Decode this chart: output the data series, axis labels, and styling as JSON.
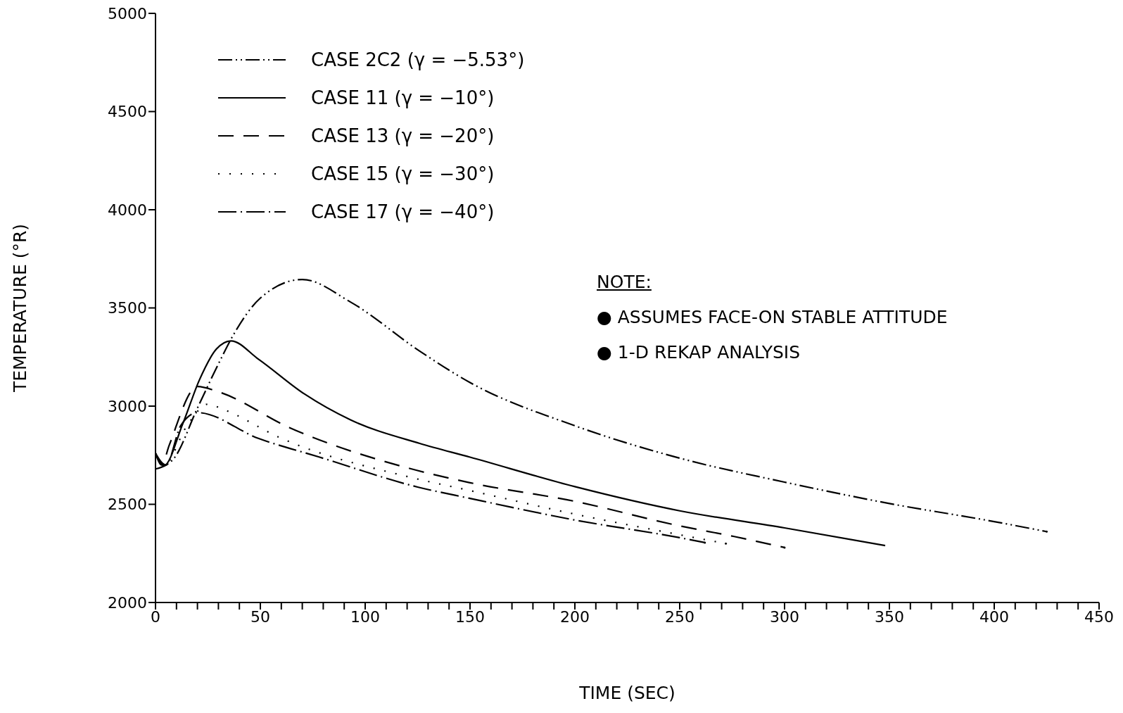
{
  "chart_data": {
    "type": "line",
    "xlabel": "TIME (SEC)",
    "ylabel": "TEMPERATURE (°R)",
    "xlim": [
      0,
      450
    ],
    "ylim": [
      2000,
      5000
    ],
    "xticks": [
      0,
      {
        "value": 10,
        "label": null
      },
      {
        "value": 20,
        "label": null
      },
      {
        "value": 30,
        "label": null
      },
      {
        "value": 40,
        "label": null
      },
      50,
      {
        "value": 60,
        "label": null
      },
      {
        "value": 70,
        "label": null
      },
      {
        "value": 80,
        "label": null
      },
      {
        "value": 90,
        "label": null
      },
      100,
      {
        "value": 110,
        "label": null
      },
      {
        "value": 120,
        "label": null
      },
      {
        "value": 130,
        "label": null
      },
      {
        "value": 140,
        "label": null
      },
      150,
      {
        "value": 160,
        "label": null
      },
      {
        "value": 170,
        "label": null
      },
      {
        "value": 180,
        "label": null
      },
      {
        "value": 190,
        "label": null
      },
      200,
      {
        "value": 210,
        "label": null
      },
      {
        "value": 220,
        "label": null
      },
      {
        "value": 230,
        "label": null
      },
      {
        "value": 240,
        "label": null
      },
      250,
      {
        "value": 260,
        "label": null
      },
      {
        "value": 270,
        "label": null
      },
      {
        "value": 280,
        "label": null
      },
      {
        "value": 290,
        "label": null
      },
      300,
      {
        "value": 310,
        "label": null
      },
      {
        "value": 320,
        "label": null
      },
      {
        "value": 330,
        "label": null
      },
      {
        "value": 340,
        "label": null
      },
      350,
      {
        "value": 360,
        "label": null
      },
      {
        "value": 370,
        "label": null
      },
      {
        "value": 380,
        "label": null
      },
      {
        "value": 390,
        "label": null
      },
      400,
      {
        "value": 410,
        "label": null
      },
      {
        "value": 420,
        "label": null
      },
      {
        "value": 430,
        "label": null
      },
      {
        "value": 440,
        "label": null
      },
      450
    ],
    "yticks": [
      2000,
      2500,
      3000,
      3500,
      4000,
      4500,
      5000
    ],
    "grid": false,
    "legend": "top left",
    "marker": "none",
    "annotations": [
      "NOTE:",
      "● ASSUMES FACE-ON STABLE ATTITUDE",
      "● 1-D REKAP ANALYSIS"
    ],
    "series": [
      {
        "name": "CASE 2C2 (γ = −5.53°)",
        "color": "#000000",
        "line_style": "dashdotdot",
        "x": [
          0,
          5,
          8.5,
          20,
          30,
          37,
          50,
          70,
          93,
          126,
          150,
          200,
          250,
          300,
          350,
          400,
          425
        ],
        "values": [
          2680,
          2700,
          2730,
          2990,
          3215,
          3360,
          3550,
          3645,
          3530,
          3280,
          3120,
          2900,
          2735,
          2613,
          2504,
          2412,
          2361
        ]
      },
      {
        "name": "CASE 11 (γ = −10°)",
        "color": "#000000",
        "line_style": "solid",
        "x": [
          0,
          4,
          13,
          21,
          29,
          36,
          49,
          71,
          93,
          126,
          150,
          200,
          250,
          300,
          348
        ],
        "values": [
          2760,
          2697,
          2910,
          3135,
          3290,
          3332,
          3240,
          3062,
          2930,
          2810,
          2740,
          2590,
          2467,
          2380,
          2290
        ]
      },
      {
        "name": "CASE 13 (γ = −20°)",
        "color": "#000000",
        "line_style": "dashed",
        "x": [
          0,
          3,
          6.5,
          20,
          30,
          64,
          120,
          150,
          200,
          250,
          276,
          300
        ],
        "values": [
          2760,
          2700,
          2800,
          3100,
          3073,
          2890,
          2686,
          2610,
          2515,
          2390,
          2336,
          2280
        ]
      },
      {
        "name": "CASE 15 (γ = −30°)",
        "color": "#000000",
        "line_style": "dotted",
        "x": [
          0,
          4,
          15,
          25,
          32,
          60,
          121,
          150,
          200,
          250,
          272
        ],
        "values": [
          2760,
          2700,
          2900,
          3010,
          2985,
          2836,
          2639,
          2570,
          2450,
          2345,
          2300
        ]
      },
      {
        "name": "CASE 17 (γ = −40°)",
        "color": "#000000",
        "line_style": "dashdot",
        "x": [
          0,
          5,
          12,
          20,
          49,
          78,
          125,
          150,
          200,
          250,
          262
        ],
        "values": [
          2760,
          2700,
          2900,
          2967,
          2836,
          2741,
          2588,
          2530,
          2420,
          2330,
          2305
        ]
      }
    ]
  }
}
